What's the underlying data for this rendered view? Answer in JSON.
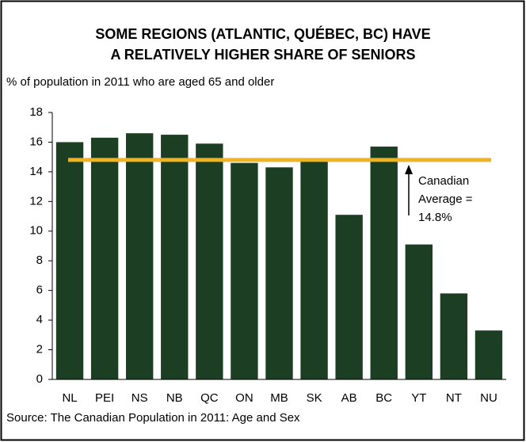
{
  "chart_data": {
    "type": "bar",
    "title": [
      "SOME REGIONS (ATLANTIC, QUÉBEC, BC) HAVE",
      "A RELATIVELY HIGHER SHARE OF SENIORS"
    ],
    "subtitle": "% of population in 2011 who are aged 65 and older",
    "categories": [
      "NL",
      "PEI",
      "NS",
      "NB",
      "QC",
      "ON",
      "MB",
      "SK",
      "AB",
      "BC",
      "YT",
      "NT",
      "NU"
    ],
    "values": [
      16.0,
      16.3,
      16.6,
      16.5,
      15.9,
      14.6,
      14.3,
      14.7,
      11.1,
      15.7,
      9.1,
      5.8,
      3.3
    ],
    "color": "#1c3f24",
    "average": 14.8,
    "average_color": "#f0b323",
    "annotation": [
      "Canadian",
      "Average =",
      "14.8%"
    ],
    "ylim": [
      0,
      18
    ],
    "yticks": [
      0,
      2,
      4,
      6,
      8,
      10,
      12,
      14,
      16,
      18
    ],
    "source": "Source: The Canadian Population in 2011: Age and Sex"
  }
}
